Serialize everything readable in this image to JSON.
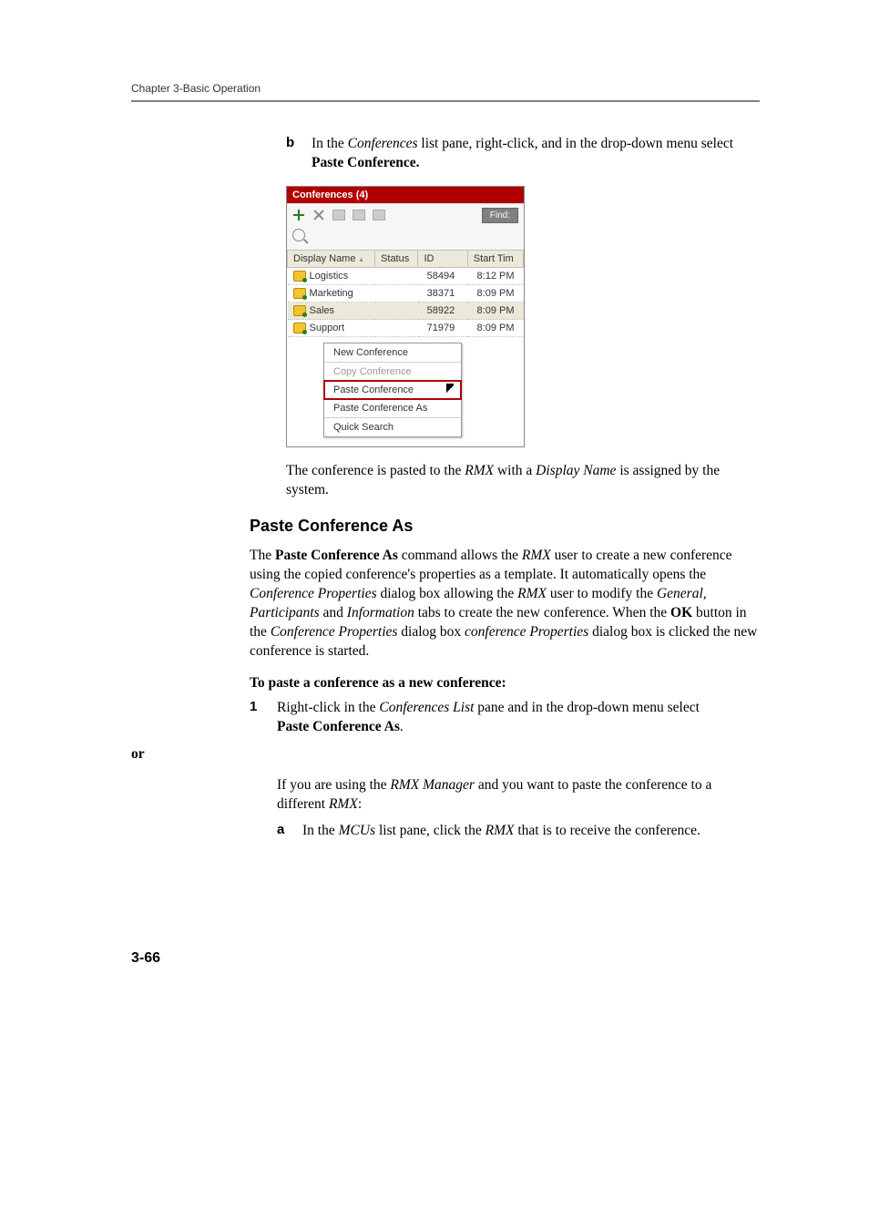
{
  "header": {
    "running": "Chapter 3-Basic Operation"
  },
  "step_b": {
    "marker": "b",
    "pre": "In the ",
    "ital": "Conferences",
    "mid": " list pane, right-click, and in the drop-down menu select ",
    "bold": "Paste Conference."
  },
  "panel": {
    "title": "Conferences (4)",
    "find": "Find:",
    "columns": {
      "c1": "Display Name",
      "c2": "Status",
      "c3": "ID",
      "c4": "Start Tim"
    },
    "rows": [
      {
        "name": "Logistics",
        "id": "58494",
        "time": "8:12 PM"
      },
      {
        "name": "Marketing",
        "id": "38371",
        "time": "8:09 PM"
      },
      {
        "name": "Sales",
        "id": "58922",
        "time": "8:09 PM"
      },
      {
        "name": "Support",
        "id": "71979",
        "time": "8:09 PM"
      }
    ],
    "menu": {
      "m1": "New Conference",
      "m2": "Copy Conference",
      "m3": "Paste Conference",
      "m4": "Paste Conference As",
      "m5": "Quick Search"
    }
  },
  "after_panel": {
    "pre": "The conference is pasted to the ",
    "rmx": "RMX",
    "mid": " with a ",
    "dn": "Display Name",
    "post": " is assigned by the system."
  },
  "section": {
    "heading": "Paste Conference As",
    "p1_a": "The ",
    "p1_bold": "Paste Conference As",
    "p1_b": " command allows the ",
    "p1_rmx1": "RMX",
    "p1_c": " user to create a new conference using the copied conference's properties as a template. It automatically opens the ",
    "p1_confprop": "Conference Properties",
    "p1_d": " dialog box allowing the ",
    "p1_rmx2": "RMX",
    "p1_e": " user to modify the ",
    "p1_gen": "General",
    "p1_comma1": ", ",
    "p1_part": "Participants",
    "p1_and": " and ",
    "p1_info": "Information",
    "p1_f": " tabs to create the new conference. When the ",
    "p1_ok": "OK",
    "p1_g": " button in the ",
    "p1_confprop2": "Conference Properties",
    "p1_h": " dialog box ",
    "p1_confprop3": "conference Properties",
    "p1_i": " dialog box is clicked the new conference is started."
  },
  "procedure": {
    "title": "To paste a conference as a new conference:",
    "s1_marker": "1",
    "s1_a": "Right-click in the ",
    "s1_ital": "Conferences List",
    "s1_b": " pane and in the drop-down menu select",
    "s1_bold": "Paste Conference As",
    "s1_period": ".",
    "or": "or",
    "s1_alt_a": "If you are using the ",
    "s1_alt_ital": "RMX Manager",
    "s1_alt_b": " and you want to paste the conference to a different ",
    "s1_alt_rmx": "RMX",
    "s1_alt_c": ":",
    "sa_marker": "a",
    "sa_a": "In the ",
    "sa_ital": "MCUs",
    "sa_b": " list pane, click the ",
    "sa_rmx": "RMX",
    "sa_c": " that is to receive the conference."
  },
  "footer": {
    "page": "3-66"
  }
}
